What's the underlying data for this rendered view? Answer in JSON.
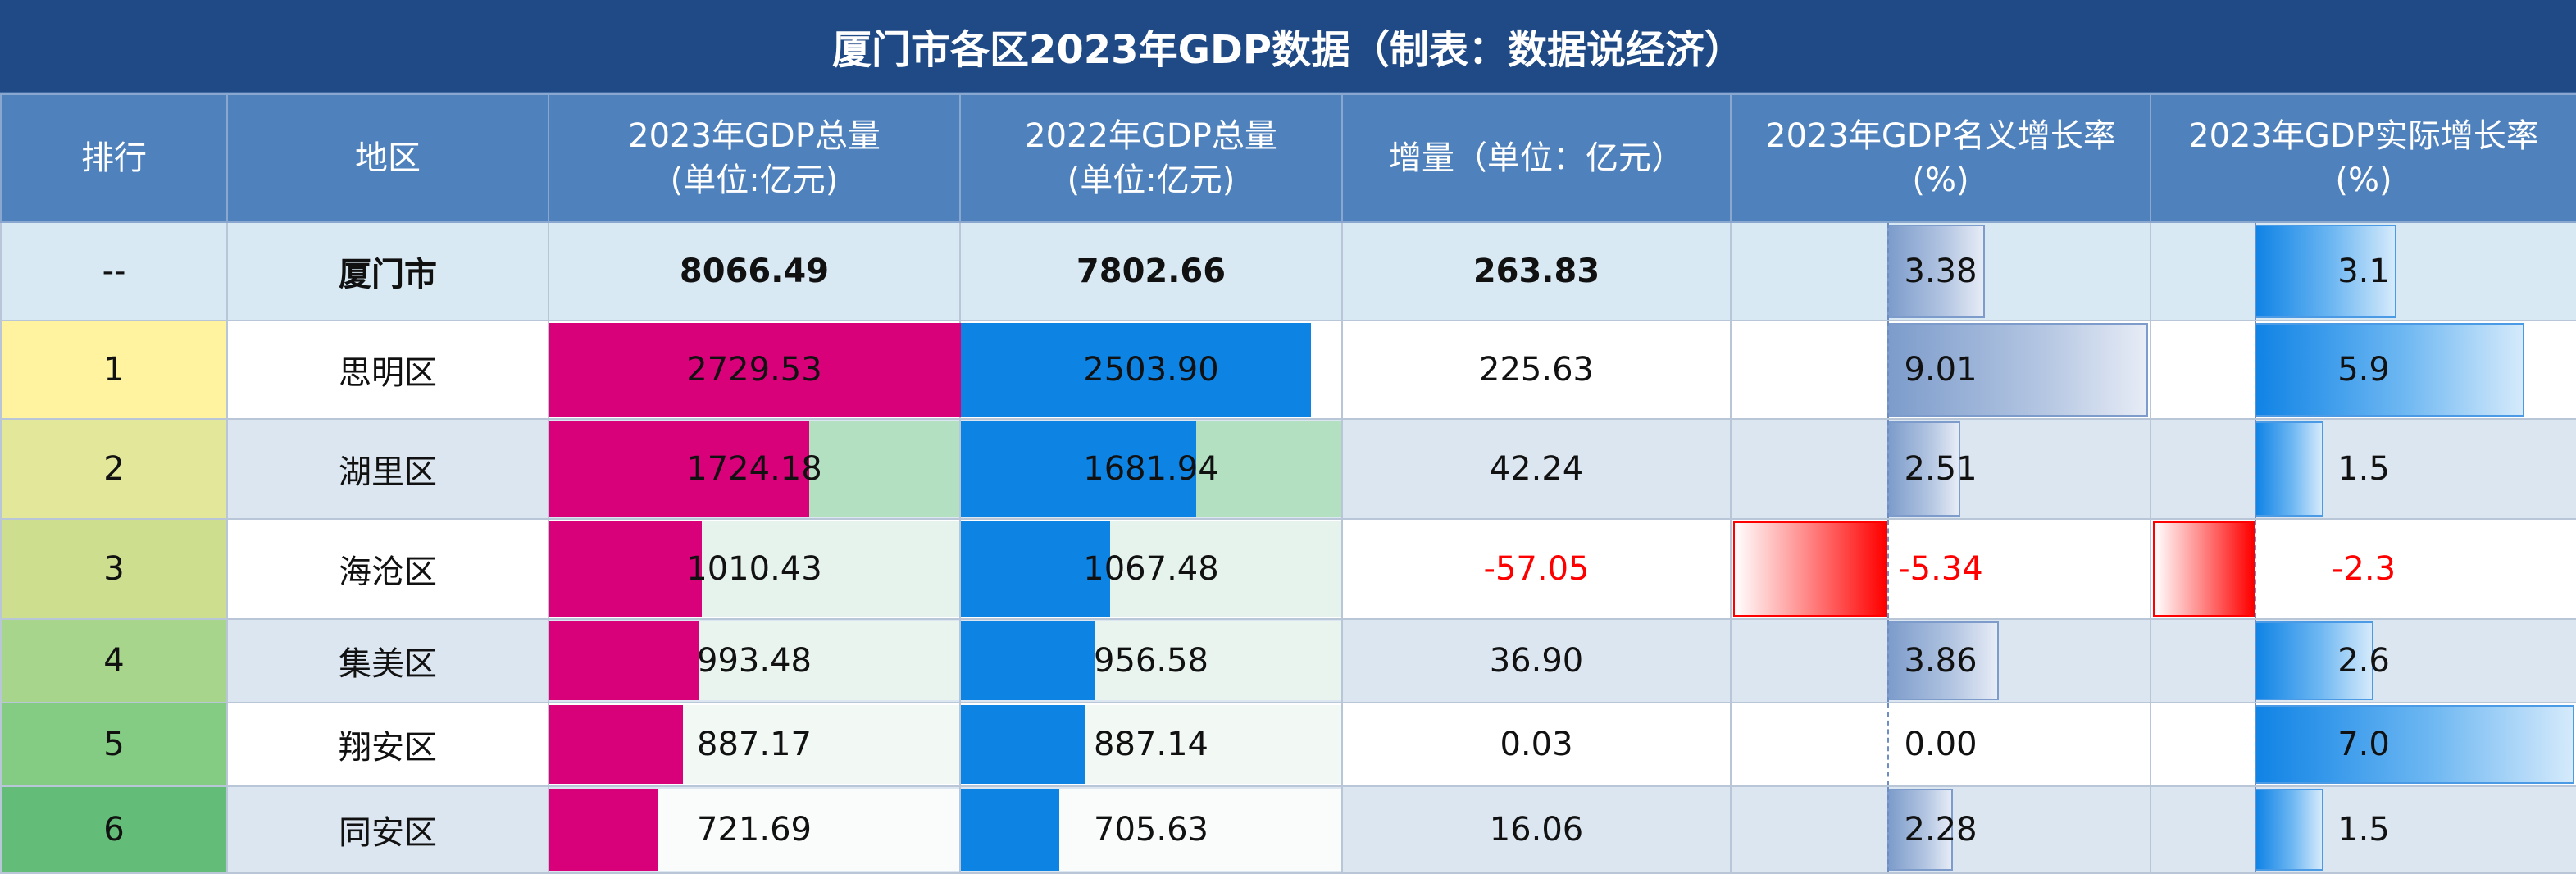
{
  "title": "厦门市各区2023年GDP数据（制表：数据说经济）",
  "headers": {
    "rank": "排行",
    "district": "地区",
    "gdp2023": [
      "2023年GDP总量",
      "(单位:亿元)"
    ],
    "gdp2022": [
      "2022年GDP总量",
      "(单位:亿元)"
    ],
    "increase": "增量（单位：亿元）",
    "nominal": [
      "2023年GDP名义增长率",
      "(%)"
    ],
    "real": [
      "2023年GDP实际增长率",
      "(%)"
    ]
  },
  "rows": [
    {
      "rank": "--",
      "district": "厦门市",
      "gdp2023": "8066.49",
      "gdp2022": "7802.66",
      "increase": "263.83",
      "nominal": "3.38",
      "real": "3.1"
    },
    {
      "rank": "1",
      "district": "思明区",
      "gdp2023": "2729.53",
      "gdp2022": "2503.90",
      "increase": "225.63",
      "nominal": "9.01",
      "real": "5.9"
    },
    {
      "rank": "2",
      "district": "湖里区",
      "gdp2023": "1724.18",
      "gdp2022": "1681.94",
      "increase": "42.24",
      "nominal": "2.51",
      "real": "1.5"
    },
    {
      "rank": "3",
      "district": "海沧区",
      "gdp2023": "1010.43",
      "gdp2022": "1067.48",
      "increase": "-57.05",
      "nominal": "-5.34",
      "real": "-2.3"
    },
    {
      "rank": "4",
      "district": "集美区",
      "gdp2023": "993.48",
      "gdp2022": "956.58",
      "increase": "36.90",
      "nominal": "3.86",
      "real": "2.6"
    },
    {
      "rank": "5",
      "district": "翔安区",
      "gdp2023": "887.17",
      "gdp2022": "887.14",
      "increase": "0.03",
      "nominal": "0.00",
      "real": "7.0"
    },
    {
      "rank": "6",
      "district": "同安区",
      "gdp2023": "721.69",
      "gdp2022": "705.63",
      "increase": "16.06",
      "nominal": "2.28",
      "real": "1.5"
    }
  ],
  "colors": {
    "header_bg": "#4f81bd",
    "title_bg": "#1f4a85",
    "gdp2023_bar": "#d9017a",
    "gdp2022_bar": "#0d84e4",
    "negative_text": "#ff0000",
    "rank_bg": [
      "#fff3a0",
      "#e3e79a",
      "#cddf8f",
      "#a8d58c",
      "#84cb83",
      "#63bd78"
    ]
  }
}
